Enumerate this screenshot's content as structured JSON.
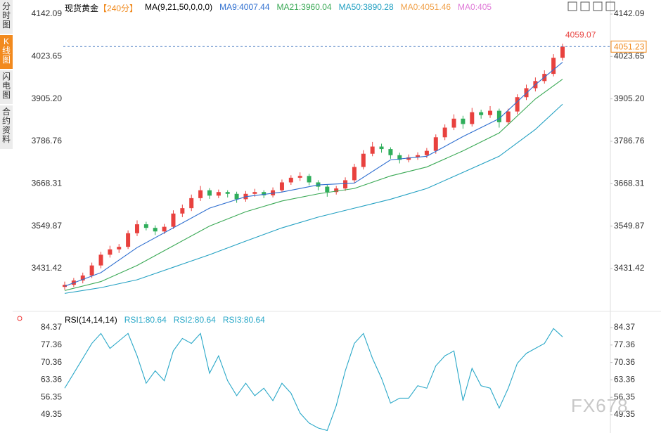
{
  "tabs": [
    "分时图",
    "K线图",
    "闪电图",
    "合约资料"
  ],
  "watermark": "FX678",
  "chart_data": [
    {
      "type": "candlestick",
      "title": "现货黄金",
      "period": "【240分】",
      "indicator": "MA(9,21,50,0,0,0)",
      "up_color": "#e8413e",
      "down_color": "#2fae5b",
      "candles": [
        [
          3380,
          3395,
          3372,
          3386
        ],
        [
          3386,
          3405,
          3380,
          3398
        ],
        [
          3398,
          3420,
          3390,
          3412
        ],
        [
          3412,
          3448,
          3405,
          3440
        ],
        [
          3440,
          3478,
          3432,
          3470
        ],
        [
          3470,
          3495,
          3462,
          3485
        ],
        [
          3485,
          3500,
          3475,
          3492
        ],
        [
          3492,
          3538,
          3486,
          3530
        ],
        [
          3530,
          3566,
          3522,
          3555
        ],
        [
          3555,
          3562,
          3538,
          3545
        ],
        [
          3545,
          3552,
          3525,
          3535
        ],
        [
          3535,
          3556,
          3528,
          3548
        ],
        [
          3548,
          3594,
          3542,
          3585
        ],
        [
          3585,
          3610,
          3575,
          3600
        ],
        [
          3600,
          3638,
          3592,
          3628
        ],
        [
          3628,
          3662,
          3620,
          3650
        ],
        [
          3650,
          3656,
          3626,
          3635
        ],
        [
          3635,
          3652,
          3628,
          3645
        ],
        [
          3645,
          3650,
          3630,
          3640
        ],
        [
          3640,
          3646,
          3615,
          3625
        ],
        [
          3625,
          3648,
          3618,
          3640
        ],
        [
          3640,
          3654,
          3632,
          3645
        ],
        [
          3645,
          3650,
          3628,
          3636
        ],
        [
          3636,
          3658,
          3630,
          3650
        ],
        [
          3650,
          3680,
          3644,
          3672
        ],
        [
          3672,
          3692,
          3665,
          3685
        ],
        [
          3685,
          3700,
          3676,
          3690
        ],
        [
          3690,
          3696,
          3664,
          3672
        ],
        [
          3672,
          3678,
          3650,
          3660
        ],
        [
          3660,
          3666,
          3632,
          3645
        ],
        [
          3645,
          3662,
          3638,
          3655
        ],
        [
          3655,
          3686,
          3648,
          3678
        ],
        [
          3678,
          3724,
          3670,
          3715
        ],
        [
          3715,
          3762,
          3708,
          3752
        ],
        [
          3752,
          3785,
          3745,
          3772
        ],
        [
          3772,
          3780,
          3755,
          3765
        ],
        [
          3765,
          3770,
          3738,
          3748
        ],
        [
          3748,
          3755,
          3725,
          3735
        ],
        [
          3735,
          3750,
          3728,
          3742
        ],
        [
          3742,
          3756,
          3735,
          3748
        ],
        [
          3748,
          3768,
          3740,
          3760
        ],
        [
          3760,
          3806,
          3752,
          3798
        ],
        [
          3798,
          3834,
          3790,
          3825
        ],
        [
          3825,
          3862,
          3818,
          3850
        ],
        [
          3850,
          3858,
          3822,
          3835
        ],
        [
          3835,
          3880,
          3828,
          3868
        ],
        [
          3868,
          3875,
          3850,
          3860
        ],
        [
          3860,
          3885,
          3852,
          3872
        ],
        [
          3872,
          3878,
          3825,
          3840
        ],
        [
          3840,
          3878,
          3832,
          3870
        ],
        [
          3870,
          3918,
          3862,
          3910
        ],
        [
          3910,
          3945,
          3902,
          3935
        ],
        [
          3935,
          3965,
          3926,
          3955
        ],
        [
          3955,
          3985,
          3948,
          3975
        ],
        [
          3975,
          4030,
          3968,
          4020
        ],
        [
          4020,
          4059.07,
          4012,
          4051.23
        ]
      ],
      "series": [
        {
          "name": "MA9:4007.44",
          "color": "#2f6fd0",
          "x": [
            0,
            4,
            8,
            12,
            16,
            20,
            24,
            28,
            32,
            36,
            40,
            44,
            48,
            52,
            55
          ],
          "values": [
            3382,
            3420,
            3490,
            3545,
            3600,
            3632,
            3645,
            3665,
            3670,
            3735,
            3745,
            3800,
            3850,
            3945,
            4007.44
          ]
        },
        {
          "name": "MA21:3960.04",
          "color": "#3aa955",
          "x": [
            0,
            4,
            8,
            12,
            16,
            20,
            24,
            28,
            32,
            36,
            40,
            44,
            48,
            52,
            55
          ],
          "values": [
            3370,
            3395,
            3440,
            3495,
            3550,
            3590,
            3620,
            3640,
            3655,
            3690,
            3715,
            3760,
            3810,
            3905,
            3960.04
          ]
        },
        {
          "name": "MA50:3890.28",
          "color": "#22a0c2",
          "x": [
            0,
            4,
            8,
            12,
            16,
            20,
            24,
            28,
            32,
            36,
            40,
            44,
            48,
            52,
            55
          ],
          "values": [
            3362,
            3378,
            3400,
            3435,
            3470,
            3508,
            3545,
            3575,
            3600,
            3625,
            3655,
            3700,
            3745,
            3820,
            3890.28
          ]
        }
      ],
      "extra_labels": [
        {
          "text": "MA0:4051.46",
          "color": "#f0a048"
        },
        {
          "text": "MA0:405",
          "color": "#e07ad8"
        }
      ],
      "ylim": [
        3317.6,
        4165.65
      ],
      "yticks": [
        4142.09,
        4023.65,
        {
          "value": 3905.2,
          "label": "3905.20"
        },
        3786.76,
        3668.31,
        3549.87,
        3431.42
      ]
    },
    {
      "type": "line",
      "title": "RSI(14,14,14)",
      "series": [
        {
          "name": "RSI1:80.64",
          "color": "#2aa8c8",
          "values": [
            60,
            66,
            72,
            78,
            82,
            76,
            79,
            82,
            73,
            62,
            67,
            63,
            75,
            80,
            78,
            82,
            66,
            73,
            63,
            57,
            62,
            57,
            60,
            55,
            62,
            58,
            50,
            46,
            44,
            43,
            53,
            67,
            78,
            82,
            72,
            64,
            54,
            56,
            56,
            61,
            60,
            69,
            73,
            75,
            55,
            68,
            61,
            60,
            52,
            60,
            70,
            74,
            76,
            78,
            84,
            80.64
          ]
        }
      ],
      "extra_labels": [
        {
          "text": "RSI2:80.64",
          "color": "#2aa8c8"
        },
        {
          "text": "RSI3:80.64",
          "color": "#2aa8c8"
        }
      ],
      "ylim": [
        42.0,
        90.3
      ],
      "yticks": [
        84.37,
        77.36,
        70.36,
        63.36,
        56.35,
        49.35
      ]
    }
  ]
}
